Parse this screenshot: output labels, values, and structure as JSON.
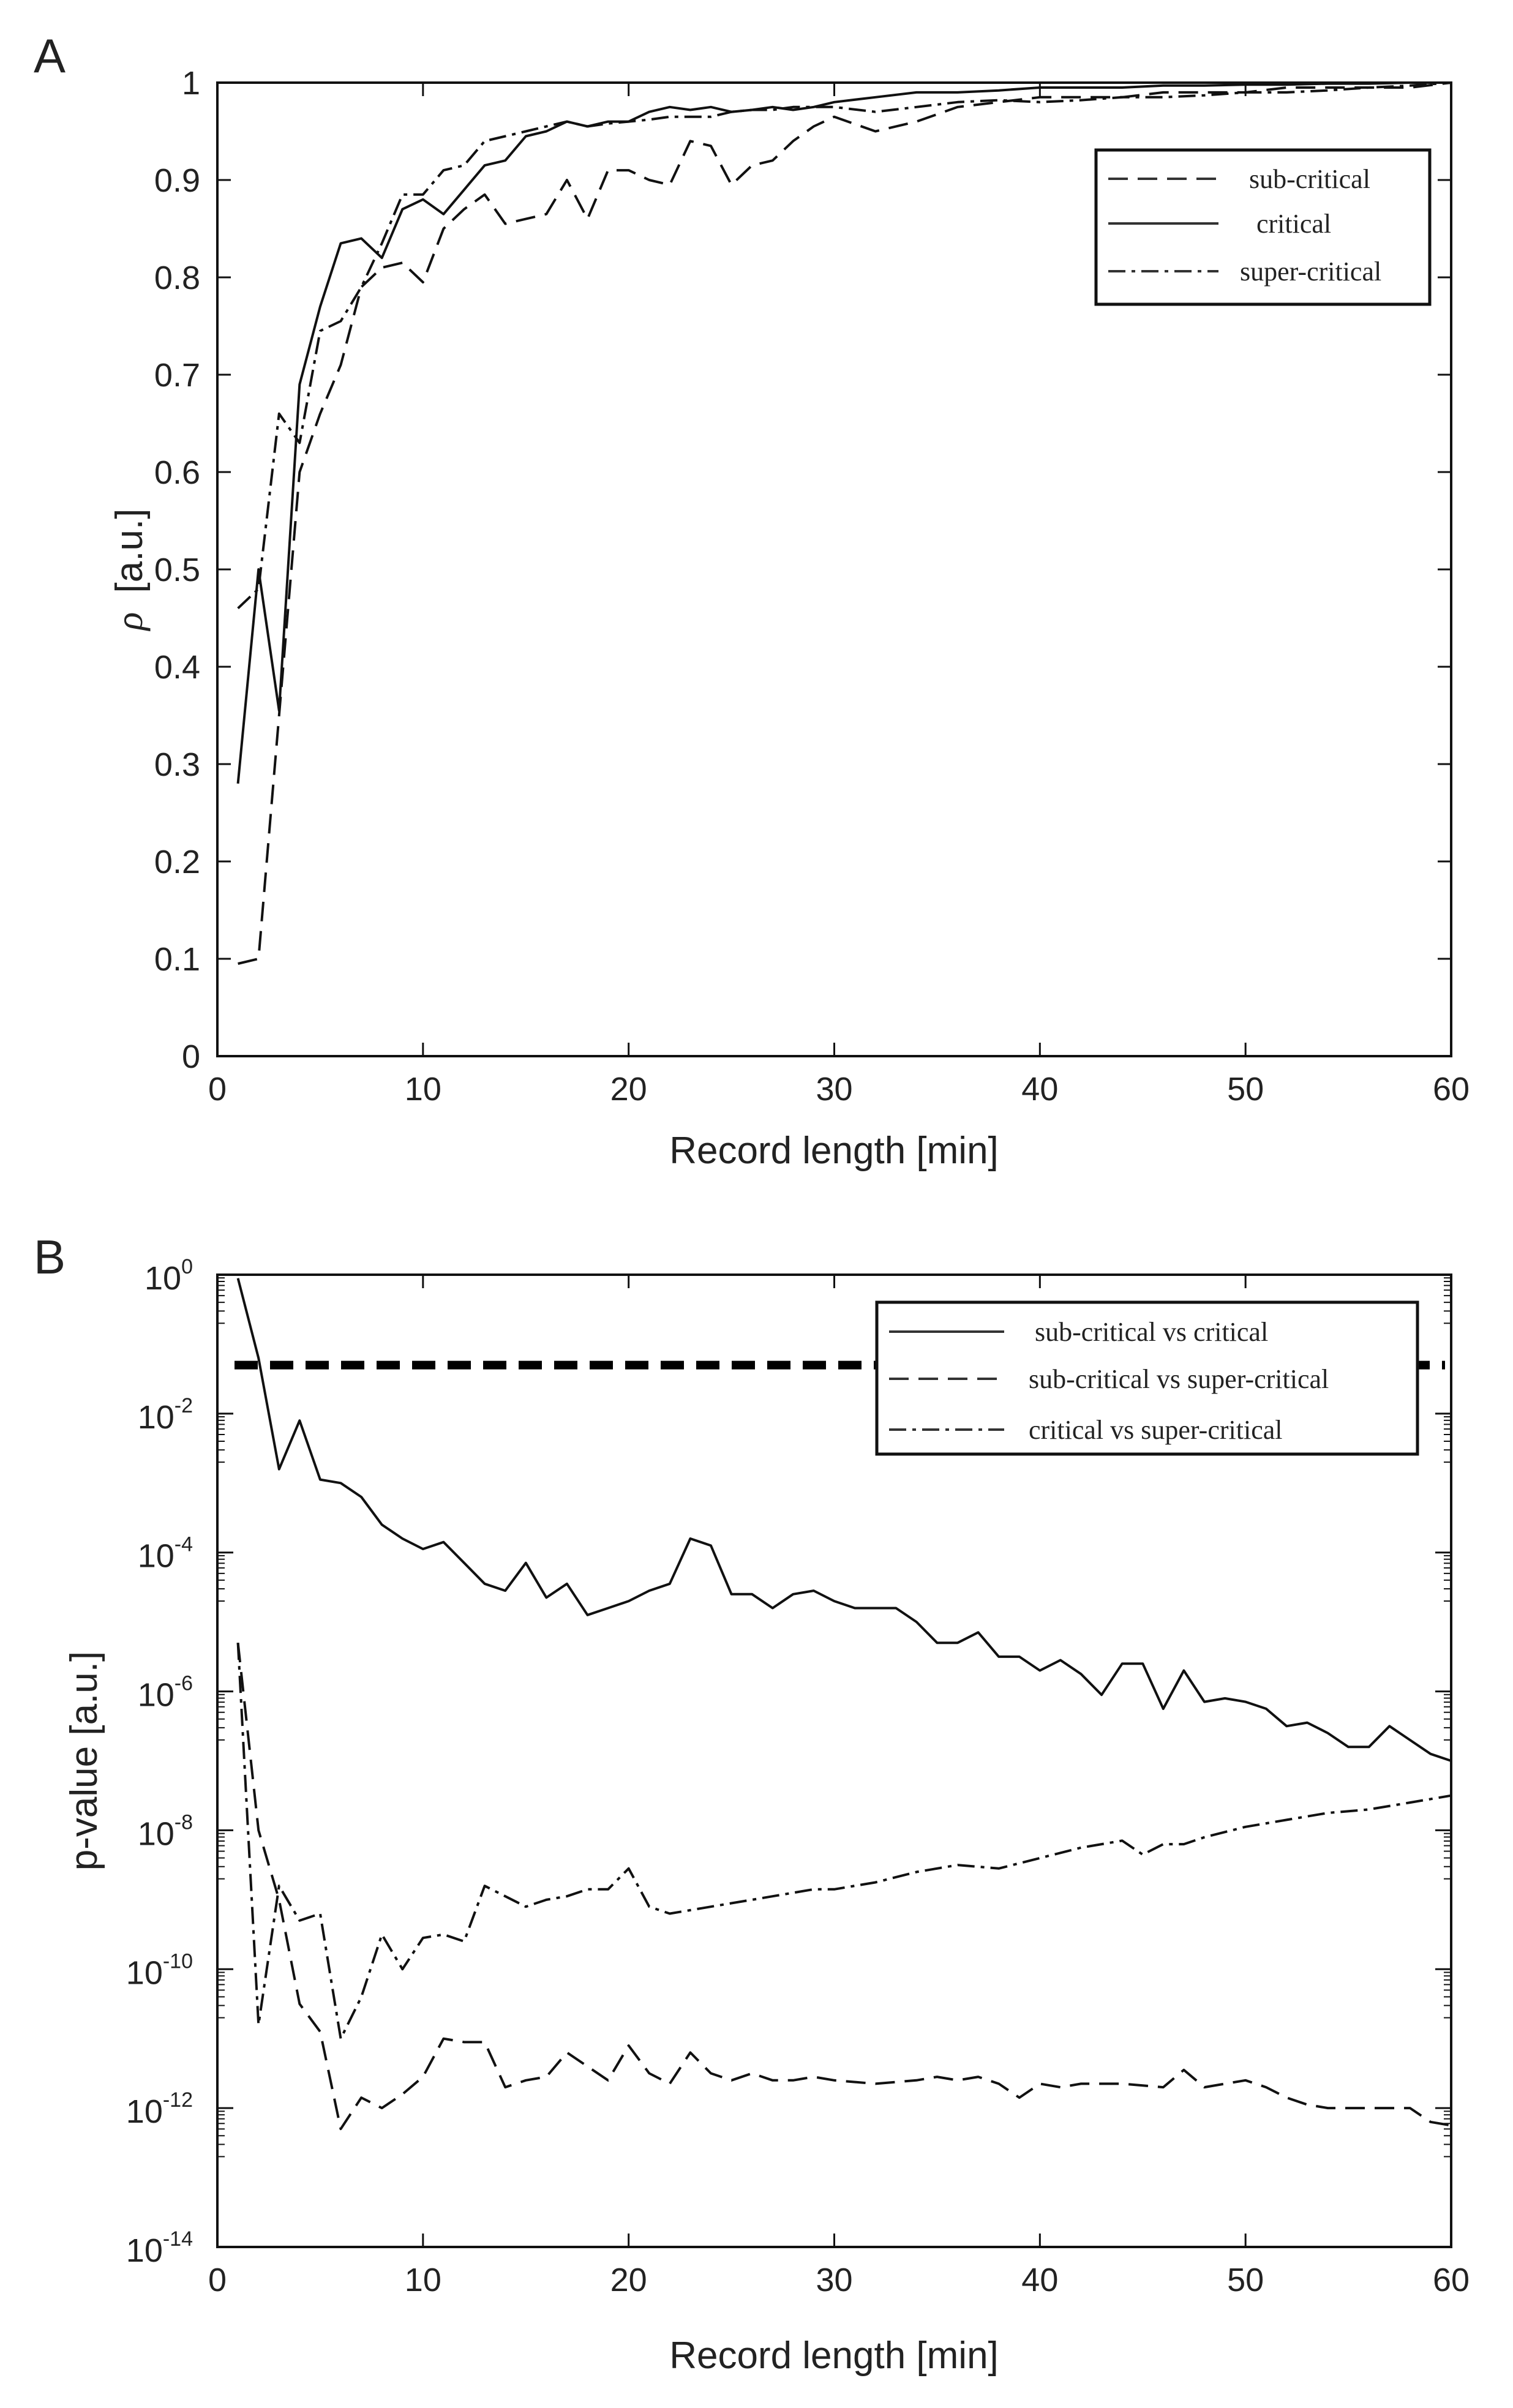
{
  "colors": {
    "background": "#ffffff",
    "ink": "#111111",
    "text": "#222222"
  },
  "chart_data": [
    {
      "panel_label": "A",
      "type": "line",
      "xlabel": "Record length [min]",
      "ylabel_symbol": "ρ",
      "ylabel": "[a.u.]",
      "xlim": [
        0,
        60
      ],
      "ylim": [
        0,
        1
      ],
      "x_ticks": [
        "0",
        "10",
        "20",
        "30",
        "40",
        "50",
        "60"
      ],
      "y_ticks": [
        "0",
        "0.1",
        "0.2",
        "0.3",
        "0.4",
        "0.5",
        "0.6",
        "0.7",
        "0.8",
        "0.9",
        "1"
      ],
      "grid": false,
      "legend_position": "top-right",
      "series": [
        {
          "name": "sub-critical",
          "dash": "dashed",
          "x": [
            1,
            2,
            3,
            4,
            5,
            6,
            7,
            8,
            9,
            10,
            11,
            12,
            13,
            14,
            15,
            16,
            17,
            18,
            19,
            20,
            21,
            22,
            23,
            24,
            25,
            26,
            27,
            28,
            29,
            30,
            32,
            34,
            36,
            38,
            40,
            42,
            44,
            46,
            48,
            50,
            52,
            54,
            56,
            58,
            60
          ],
          "y": [
            0.095,
            0.1,
            0.35,
            0.6,
            0.66,
            0.71,
            0.79,
            0.81,
            0.815,
            0.795,
            0.85,
            0.87,
            0.885,
            0.855,
            0.86,
            0.865,
            0.9,
            0.86,
            0.91,
            0.91,
            0.9,
            0.895,
            0.94,
            0.935,
            0.895,
            0.915,
            0.92,
            0.94,
            0.955,
            0.965,
            0.95,
            0.96,
            0.975,
            0.98,
            0.985,
            0.985,
            0.985,
            0.99,
            0.99,
            0.99,
            0.995,
            0.995,
            0.995,
            0.995,
            1.0
          ]
        },
        {
          "name": "critical",
          "dash": "solid",
          "x": [
            1,
            2,
            3,
            4,
            5,
            6,
            7,
            8,
            9,
            10,
            11,
            12,
            13,
            14,
            15,
            16,
            17,
            18,
            19,
            20,
            21,
            22,
            23,
            24,
            25,
            26,
            27,
            28,
            29,
            30,
            32,
            34,
            36,
            38,
            40,
            42,
            44,
            46,
            48,
            50,
            52,
            54,
            56,
            58,
            60
          ],
          "y": [
            0.28,
            0.5,
            0.355,
            0.69,
            0.77,
            0.835,
            0.84,
            0.82,
            0.87,
            0.88,
            0.865,
            0.89,
            0.915,
            0.92,
            0.945,
            0.95,
            0.96,
            0.955,
            0.96,
            0.96,
            0.97,
            0.975,
            0.972,
            0.975,
            0.97,
            0.972,
            0.975,
            0.972,
            0.975,
            0.98,
            0.985,
            0.99,
            0.99,
            0.992,
            0.995,
            0.995,
            0.995,
            0.997,
            0.997,
            0.998,
            0.998,
            0.999,
            0.999,
            1.0,
            1.0
          ]
        },
        {
          "name": "super-critical",
          "dash": "dash-dot",
          "x": [
            1,
            2,
            3,
            4,
            5,
            6,
            7,
            8,
            9,
            10,
            11,
            12,
            13,
            14,
            15,
            16,
            17,
            18,
            19,
            20,
            21,
            22,
            23,
            24,
            25,
            26,
            27,
            28,
            29,
            30,
            32,
            34,
            36,
            38,
            40,
            42,
            44,
            46,
            48,
            50,
            52,
            54,
            56,
            58,
            60
          ],
          "y": [
            0.46,
            0.48,
            0.66,
            0.63,
            0.745,
            0.755,
            0.79,
            0.835,
            0.885,
            0.885,
            0.91,
            0.915,
            0.94,
            0.945,
            0.95,
            0.955,
            0.96,
            0.955,
            0.958,
            0.96,
            0.962,
            0.965,
            0.965,
            0.965,
            0.97,
            0.972,
            0.972,
            0.975,
            0.975,
            0.975,
            0.97,
            0.975,
            0.98,
            0.982,
            0.98,
            0.982,
            0.985,
            0.985,
            0.987,
            0.99,
            0.99,
            0.992,
            0.995,
            0.997,
            1.0
          ]
        }
      ]
    },
    {
      "panel_label": "B",
      "type": "line",
      "yscale": "log",
      "xlabel": "Record length [min]",
      "ylabel": "p-value [a.u.]",
      "xlim": [
        0,
        60
      ],
      "ylim_log10": [
        -14,
        0
      ],
      "x_ticks": [
        "0",
        "10",
        "20",
        "30",
        "40",
        "50",
        "60"
      ],
      "y_tick_base": "10",
      "y_tick_exponents": [
        "0",
        "-2",
        "-4",
        "-6",
        "-8",
        "-10",
        "-12",
        "-14"
      ],
      "grid": false,
      "legend_position": "top-right",
      "threshold_p": 0.05,
      "series": [
        {
          "name": "sub-critical vs critical",
          "dash": "solid",
          "x": [
            1,
            2,
            3,
            4,
            5,
            6,
            7,
            8,
            9,
            10,
            11,
            12,
            13,
            14,
            15,
            16,
            17,
            18,
            19,
            20,
            21,
            22,
            23,
            24,
            25,
            26,
            27,
            28,
            29,
            30,
            31,
            32,
            33,
            34,
            35,
            36,
            37,
            38,
            39,
            40,
            41,
            42,
            43,
            44,
            45,
            46,
            47,
            48,
            49,
            50,
            51,
            52,
            53,
            54,
            55,
            56,
            57,
            58,
            59,
            60
          ],
          "log10_p": [
            -0.05,
            -1.2,
            -2.8,
            -2.1,
            -2.95,
            -3.0,
            -3.2,
            -3.6,
            -3.8,
            -3.95,
            -3.85,
            -4.15,
            -4.45,
            -4.55,
            -4.15,
            -4.65,
            -4.45,
            -4.9,
            -4.8,
            -4.7,
            -4.55,
            -4.45,
            -3.8,
            -3.9,
            -4.6,
            -4.6,
            -4.8,
            -4.6,
            -4.55,
            -4.7,
            -4.8,
            -4.8,
            -4.8,
            -5.0,
            -5.3,
            -5.3,
            -5.15,
            -5.5,
            -5.5,
            -5.7,
            -5.55,
            -5.75,
            -6.05,
            -5.6,
            -5.6,
            -6.25,
            -5.7,
            -6.15,
            -6.1,
            -6.15,
            -6.25,
            -6.5,
            -6.45,
            -6.6,
            -6.8,
            -6.8,
            -6.5,
            -6.7,
            -6.9,
            -7.0
          ]
        },
        {
          "name": "sub-critical vs super-critical",
          "dash": "dashed",
          "x": [
            1,
            2,
            3,
            4,
            5,
            6,
            7,
            8,
            9,
            10,
            11,
            12,
            13,
            14,
            15,
            16,
            17,
            18,
            19,
            20,
            21,
            22,
            23,
            24,
            25,
            26,
            27,
            28,
            29,
            30,
            32,
            34,
            35,
            36,
            37,
            38,
            39,
            40,
            41,
            42,
            44,
            46,
            47,
            48,
            49,
            50,
            51,
            52,
            53,
            54,
            56,
            58,
            59,
            60
          ],
          "log10_p": [
            -5.3,
            -8.0,
            -9.0,
            -10.5,
            -10.9,
            -12.3,
            -11.85,
            -12.0,
            -11.8,
            -11.55,
            -11.0,
            -11.05,
            -11.05,
            -11.7,
            -11.6,
            -11.55,
            -11.2,
            -11.4,
            -11.6,
            -11.1,
            -11.5,
            -11.65,
            -11.2,
            -11.5,
            -11.6,
            -11.5,
            -11.6,
            -11.6,
            -11.55,
            -11.6,
            -11.65,
            -11.6,
            -11.55,
            -11.6,
            -11.55,
            -11.65,
            -11.85,
            -11.65,
            -11.7,
            -11.65,
            -11.65,
            -11.7,
            -11.45,
            -11.7,
            -11.65,
            -11.6,
            -11.7,
            -11.85,
            -11.95,
            -12.0,
            -12.0,
            -12.0,
            -12.2,
            -12.25
          ]
        },
        {
          "name": "critical vs super-critical",
          "dash": "dash-dot",
          "x": [
            1,
            2,
            3,
            4,
            5,
            6,
            7,
            8,
            9,
            10,
            11,
            12,
            13,
            14,
            15,
            16,
            17,
            18,
            19,
            20,
            21,
            22,
            23,
            24,
            25,
            26,
            27,
            28,
            29,
            30,
            32,
            34,
            36,
            38,
            40,
            42,
            44,
            45,
            46,
            47,
            48,
            50,
            52,
            54,
            56,
            58,
            60
          ],
          "log10_p": [
            -5.3,
            -10.8,
            -8.8,
            -9.3,
            -9.2,
            -11.0,
            -10.4,
            -9.5,
            -10.0,
            -9.55,
            -9.5,
            -9.6,
            -8.8,
            -8.95,
            -9.1,
            -9.0,
            -8.95,
            -8.85,
            -8.85,
            -8.55,
            -9.1,
            -9.2,
            -9.15,
            -9.1,
            -9.05,
            -9.0,
            -8.95,
            -8.9,
            -8.85,
            -8.85,
            -8.75,
            -8.6,
            -8.5,
            -8.55,
            -8.4,
            -8.25,
            -8.15,
            -8.35,
            -8.2,
            -8.2,
            -8.1,
            -7.95,
            -7.85,
            -7.75,
            -7.7,
            -7.6,
            -7.5
          ]
        }
      ]
    }
  ]
}
